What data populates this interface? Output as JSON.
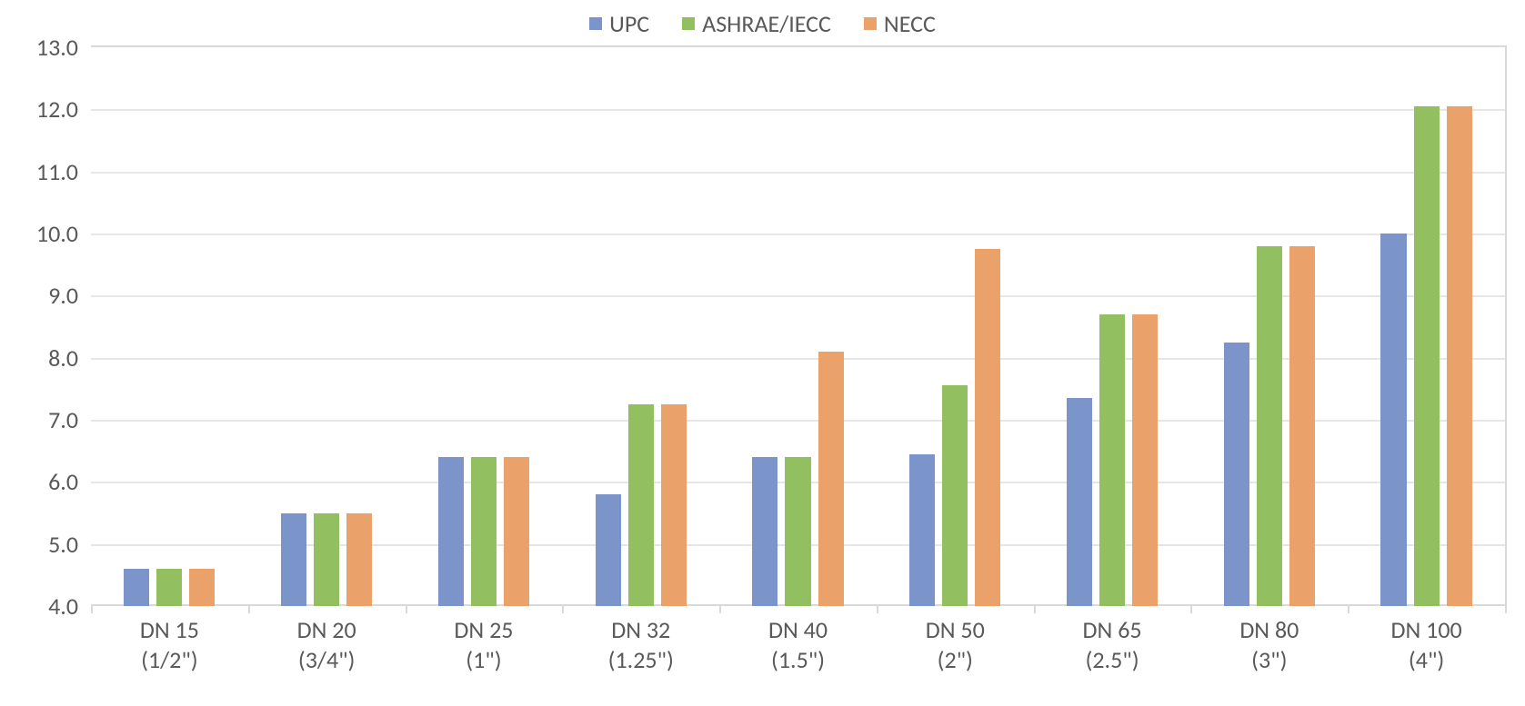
{
  "chart": {
    "type": "bar",
    "background_color": "#ffffff",
    "grid_color": "#e6e6e6",
    "axis_color": "#d9d9d9",
    "tick_font_color": "#595959",
    "tick_font_size_pt": 20,
    "legend_font_size_pt": 20,
    "ylim": [
      4.0,
      13.0
    ],
    "ytick_step": 1.0,
    "ytick_decimals": 1,
    "bar_gap_ratio": 0.08,
    "group_inner_width_ratio": 0.58,
    "categories": [
      {
        "line1": "DN 15",
        "line2": "(1/2\")"
      },
      {
        "line1": "DN 20",
        "line2": "(3/4\")"
      },
      {
        "line1": "DN 25",
        "line2": "(1\")"
      },
      {
        "line1": "DN 32",
        "line2": "(1.25\")"
      },
      {
        "line1": "DN 40",
        "line2": "(1.5\")"
      },
      {
        "line1": "DN 50",
        "line2": "(2\")"
      },
      {
        "line1": "DN 65",
        "line2": "(2.5\")"
      },
      {
        "line1": "DN 80",
        "line2": "(3\")"
      },
      {
        "line1": "DN 100",
        "line2": "(4\")"
      }
    ],
    "series": [
      {
        "name": "UPC",
        "color": "#7b94c9",
        "values": [
          4.6,
          5.5,
          6.4,
          5.8,
          6.4,
          6.45,
          7.35,
          8.25,
          10.0
        ]
      },
      {
        "name": "ASHRAE/IECC",
        "color": "#92c060",
        "values": [
          4.6,
          5.5,
          6.4,
          7.25,
          6.4,
          7.55,
          8.7,
          9.8,
          12.05
        ]
      },
      {
        "name": "NECC",
        "color": "#eba16a",
        "values": [
          4.6,
          5.5,
          6.4,
          7.25,
          8.1,
          9.75,
          8.7,
          9.8,
          12.05
        ]
      }
    ],
    "legend": {
      "position": "top-center",
      "items": [
        {
          "label": "UPC",
          "color": "#7b94c9"
        },
        {
          "label": "ASHRAE/IECC",
          "color": "#92c060"
        },
        {
          "label": "NECC",
          "color": "#eba16a"
        }
      ]
    }
  }
}
